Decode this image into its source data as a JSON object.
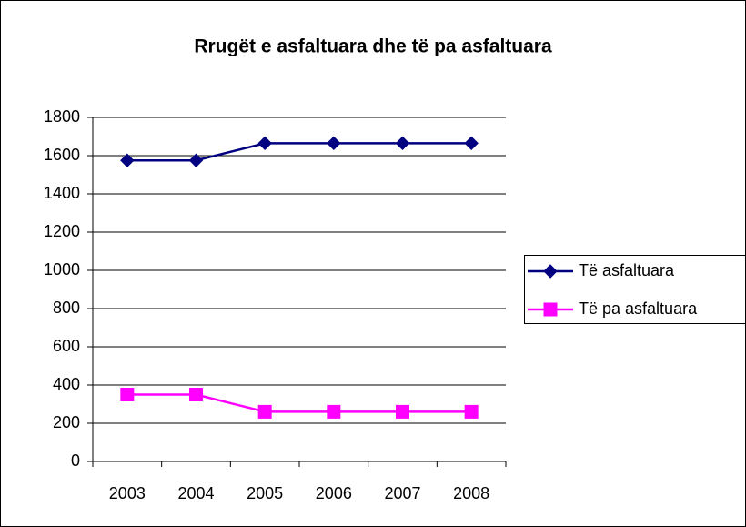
{
  "chart_data": {
    "type": "line",
    "title": "Rrugët e asfaltuara dhe të pa asfaltuara",
    "categories": [
      "2003",
      "2004",
      "2005",
      "2006",
      "2007",
      "2008"
    ],
    "series": [
      {
        "name": "Të asfaltuara",
        "color": "#000080",
        "marker": "diamond",
        "values": [
          1575,
          1575,
          1665,
          1665,
          1665,
          1665
        ]
      },
      {
        "name": "Të pa asfaltuara",
        "color": "#ff00ff",
        "marker": "square",
        "values": [
          350,
          350,
          260,
          260,
          260,
          260
        ]
      }
    ],
    "ylim": [
      0,
      1800
    ],
    "yticks": [
      0,
      200,
      400,
      600,
      800,
      1000,
      1200,
      1400,
      1600,
      1800
    ],
    "grid": true,
    "legend": "right"
  }
}
